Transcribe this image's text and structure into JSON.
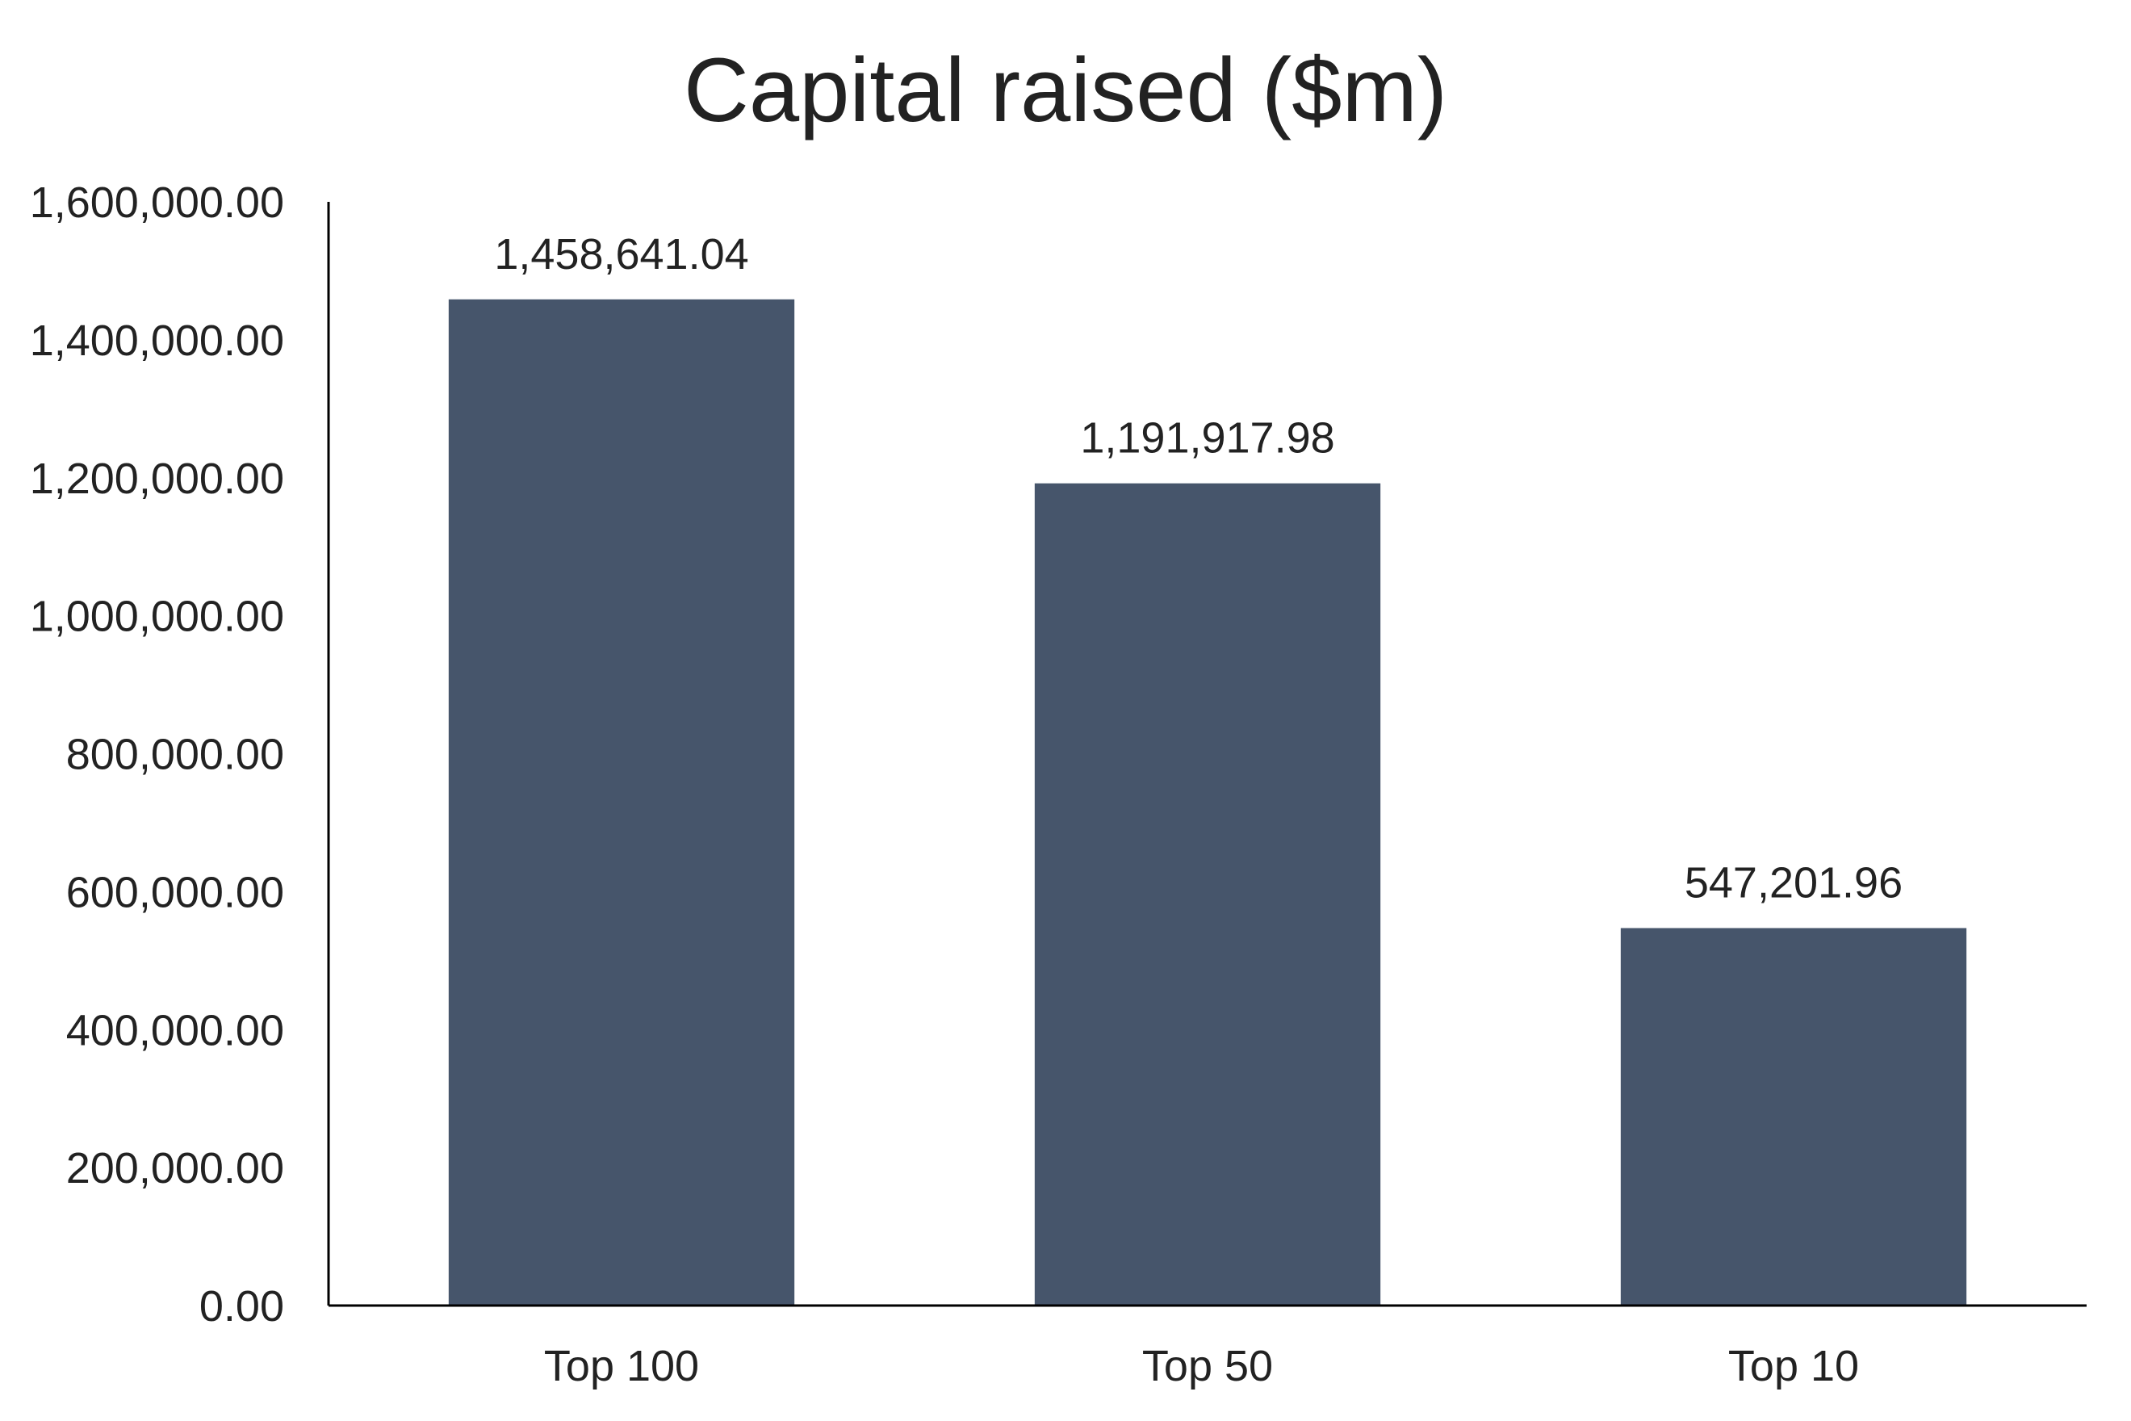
{
  "chart_data": {
    "type": "bar",
    "title": "Capital raised ($m)",
    "categories": [
      "Top 100",
      "Top 50",
      "Top 10"
    ],
    "values": [
      1458641.04,
      1191917.98,
      547201.96
    ],
    "data_labels": [
      "1,458,641.04",
      "1,191,917.98",
      "547,201.96"
    ],
    "ylim": [
      0,
      1600000
    ],
    "yticks": [
      0,
      200000,
      400000,
      600000,
      800000,
      1000000,
      1200000,
      1400000,
      1600000
    ],
    "ytick_labels": [
      "0.00",
      "200,000.00",
      "400,000.00",
      "600,000.00",
      "800,000.00",
      "1,000,000.00",
      "1,200,000.00",
      "1,400,000.00",
      "1,600,000.00"
    ],
    "xlabel": "",
    "ylabel": "",
    "grid": false,
    "legend": "none",
    "colors": {
      "bar": "#46556B",
      "axis": "#000000",
      "text": "#222222"
    }
  }
}
